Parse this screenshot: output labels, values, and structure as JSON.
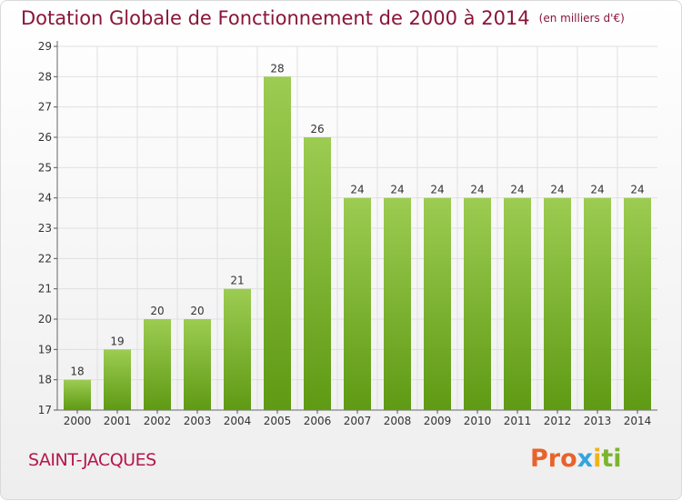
{
  "title": "Dotation Globale de Fonctionnement de 2000 à 2014",
  "unit_note": "(en milliers d'€)",
  "town": "SAINT-JACQUES",
  "logo": {
    "p1": "Pro",
    "p2": "x",
    "p3": "i",
    "p4": "ti"
  },
  "colors": {
    "bar_top": "#9ccc52",
    "bar_bottom": "#5f9a14",
    "title": "#8a1538"
  },
  "chart_data": {
    "type": "bar",
    "title": "Dotation Globale de Fonctionnement de 2000 à 2014",
    "categories": [
      "2000",
      "2001",
      "2002",
      "2003",
      "2004",
      "2005",
      "2006",
      "2007",
      "2008",
      "2009",
      "2010",
      "2011",
      "2012",
      "2013",
      "2014"
    ],
    "values": [
      18,
      19,
      20,
      20,
      21,
      28,
      26,
      24,
      24,
      24,
      24,
      24,
      24,
      24,
      24
    ],
    "ylim": [
      17,
      29
    ],
    "yticks": [
      17,
      18,
      19,
      20,
      21,
      22,
      23,
      24,
      25,
      26,
      27,
      28,
      29
    ],
    "grid": true,
    "data_labels": true
  }
}
